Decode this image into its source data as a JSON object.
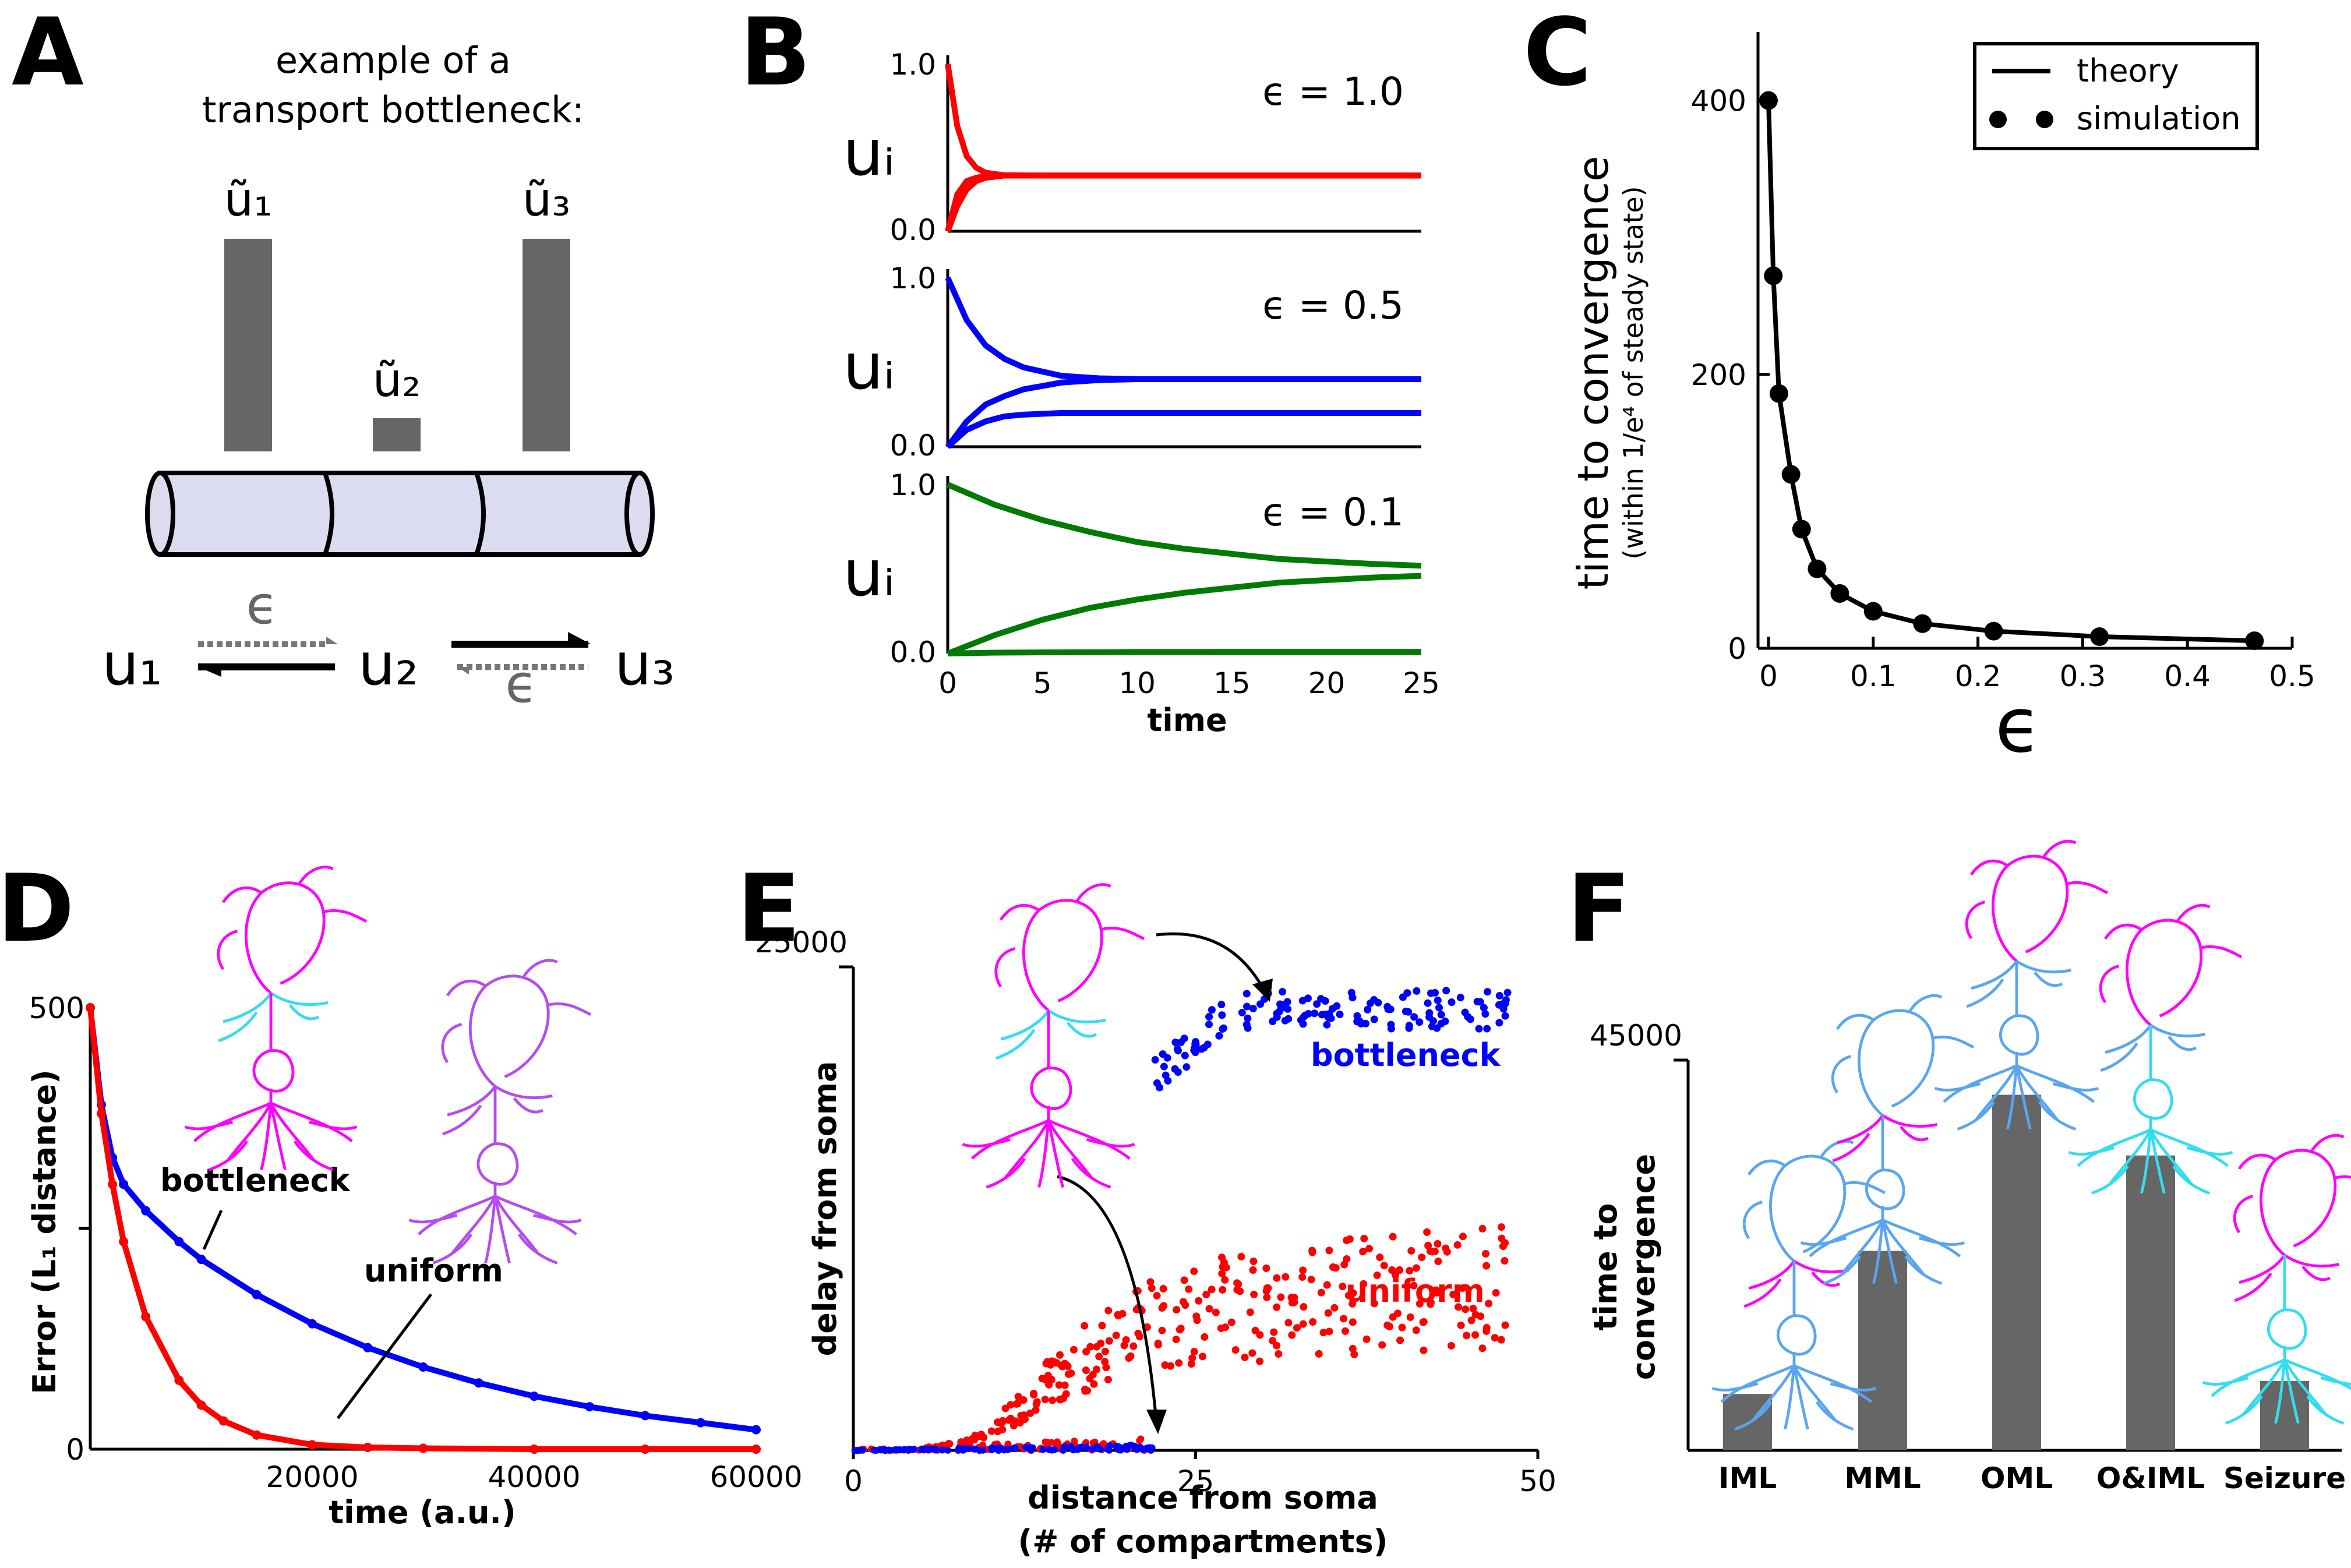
{
  "panels": {
    "A": {
      "letter": "A",
      "caption_line1": "example of a",
      "caption_line2": "transport bottleneck:",
      "bar_labels": [
        "ũ₁",
        "ũ₂",
        "ũ₃"
      ],
      "bar_heights": [
        1.0,
        0.16,
        1.0
      ],
      "nodes": [
        "u₁",
        "u₂",
        "u₃"
      ],
      "epsilon_label": "ϵ"
    },
    "B": {
      "letter": "B",
      "ylabel": "uᵢ",
      "xlabel": "time",
      "x_ticks": [
        "0",
        "5",
        "10",
        "15",
        "20",
        "25"
      ],
      "y_ticks": [
        "0.0",
        "1.0"
      ]
    },
    "C": {
      "letter": "C",
      "ylabel": "time to convergence",
      "ylabel_sub": "(within 1/e⁴ of steady state)",
      "xlabel": "ϵ",
      "legend": [
        "theory",
        "simulation"
      ],
      "x_ticks": [
        "0",
        "0.1",
        "0.2",
        "0.3",
        "0.4",
        "0.5"
      ],
      "y_ticks": [
        "0",
        "200",
        "400"
      ]
    },
    "D": {
      "letter": "D",
      "ylabel": "Error (L₁ distance)",
      "xlabel": "time (a.u.)",
      "x_ticks": [
        "20000",
        "40000",
        "60000"
      ],
      "y_ticks": [
        "0",
        "500"
      ],
      "labels": [
        "bottleneck",
        "uniform"
      ]
    },
    "E": {
      "letter": "E",
      "ylabel": "delay from soma",
      "xlabel_line1": "distance from soma",
      "xlabel_line2": "(# of compartments)",
      "x_ticks": [
        "0",
        "25",
        "50"
      ],
      "y_ticks": [
        "25000"
      ],
      "labels": [
        "bottleneck",
        "uniform"
      ]
    },
    "F": {
      "letter": "F",
      "ylabel_line1": "time to",
      "ylabel_line2": "convergence",
      "y_ticks": [
        "45000"
      ]
    }
  },
  "colors": {
    "red": "#ff0000",
    "blue": "#0000ff",
    "green": "#007a00",
    "magenta": "#ff00ff",
    "cyan": "#33ddee",
    "purple": "#b44cf0",
    "lightblue": "#5aa5f0",
    "bar_gray": "#666666",
    "tube": "#dcdcf0"
  },
  "chart_data": [
    {
      "panel": "B",
      "type": "line",
      "xlabel": "time",
      "ylabel": "uᵢ",
      "xlim": [
        0,
        25
      ],
      "subplots": [
        {
          "epsilon_label": "ϵ = 1.0",
          "epsilon": 1.0,
          "ylim": [
            0,
            1
          ],
          "series": [
            {
              "x": [
                0,
                0.5,
                1,
                1.5,
                2,
                3,
                5,
                10,
                25
              ],
              "values": [
                1.0,
                0.63,
                0.45,
                0.38,
                0.35,
                0.335,
                0.333,
                0.333,
                0.333
              ]
            },
            {
              "x": [
                0,
                0.5,
                1,
                1.5,
                2,
                3,
                5,
                10,
                25
              ],
              "values": [
                0.0,
                0.22,
                0.3,
                0.32,
                0.33,
                0.333,
                0.333,
                0.333,
                0.333
              ]
            },
            {
              "x": [
                0,
                0.5,
                1,
                1.5,
                2,
                3,
                5,
                10,
                25
              ],
              "values": [
                0.0,
                0.15,
                0.25,
                0.3,
                0.32,
                0.333,
                0.333,
                0.333,
                0.333
              ]
            }
          ]
        },
        {
          "epsilon_label": "ϵ = 0.5",
          "epsilon": 0.5,
          "ylim": [
            0,
            1
          ],
          "series": [
            {
              "x": [
                0,
                1,
                2,
                3,
                4,
                6,
                8,
                10,
                15,
                25
              ],
              "values": [
                1.0,
                0.75,
                0.6,
                0.52,
                0.47,
                0.42,
                0.405,
                0.4,
                0.4,
                0.4
              ]
            },
            {
              "x": [
                0,
                1,
                2,
                3,
                4,
                6,
                8,
                10,
                15,
                25
              ],
              "values": [
                0.0,
                0.1,
                0.15,
                0.18,
                0.19,
                0.2,
                0.2,
                0.2,
                0.2,
                0.2
              ]
            },
            {
              "x": [
                0,
                1,
                2,
                3,
                4,
                6,
                8,
                10,
                15,
                25
              ],
              "values": [
                0.0,
                0.15,
                0.25,
                0.3,
                0.34,
                0.38,
                0.395,
                0.4,
                0.4,
                0.4
              ]
            }
          ]
        },
        {
          "epsilon_label": "ϵ = 0.1",
          "epsilon": 0.1,
          "ylim": [
            0,
            1
          ],
          "series": [
            {
              "x": [
                0,
                2.5,
                5,
                7.5,
                10,
                12.5,
                15,
                17.5,
                20,
                22.5,
                25
              ],
              "values": [
                1.0,
                0.88,
                0.79,
                0.72,
                0.66,
                0.62,
                0.59,
                0.56,
                0.545,
                0.53,
                0.52
              ]
            },
            {
              "x": [
                0,
                2.5,
                5,
                7.5,
                10,
                12.5,
                15,
                17.5,
                20,
                22.5,
                25
              ],
              "values": [
                0.0,
                0.11,
                0.2,
                0.27,
                0.32,
                0.36,
                0.39,
                0.42,
                0.435,
                0.45,
                0.46
              ]
            },
            {
              "x": [
                0,
                2.5,
                5,
                7.5,
                10,
                12.5,
                15,
                17.5,
                20,
                22.5,
                25
              ],
              "values": [
                0.0,
                0.005,
                0.007,
                0.008,
                0.009,
                0.009,
                0.01,
                0.01,
                0.01,
                0.01,
                0.01
              ]
            }
          ]
        }
      ]
    },
    {
      "panel": "C",
      "type": "line",
      "xlabel": "ϵ",
      "ylabel": "time to convergence",
      "xlim": [
        -0.01,
        0.5
      ],
      "ylim": [
        0,
        450
      ],
      "series": [
        {
          "name": "theory",
          "x": [
            0.0,
            0.0046,
            0.01,
            0.0215,
            0.0316,
            0.0464,
            0.0681,
            0.1,
            0.147,
            0.215,
            0.316,
            0.464
          ],
          "values": [
            400,
            272,
            186,
            127,
            87,
            58,
            40,
            27,
            18,
            12.5,
            8.5,
            5.5
          ]
        },
        {
          "name": "simulation",
          "x": [
            0.0,
            0.0046,
            0.01,
            0.0215,
            0.0316,
            0.0464,
            0.0681,
            0.1,
            0.147,
            0.215,
            0.316,
            0.464
          ],
          "values": [
            400,
            272,
            186,
            127,
            87,
            58,
            40,
            27,
            18,
            12.5,
            8.5,
            5.5
          ]
        }
      ]
    },
    {
      "panel": "D",
      "type": "line",
      "xlabel": "time (a.u.)",
      "ylabel": "Error (L₁ distance)",
      "xlim": [
        0,
        60000
      ],
      "ylim": [
        0,
        500
      ],
      "series": [
        {
          "name": "bottleneck",
          "x": [
            0,
            1000,
            2000,
            3000,
            5000,
            8000,
            10000,
            15000,
            20000,
            25000,
            30000,
            35000,
            40000,
            45000,
            50000,
            55000,
            60000
          ],
          "values": [
            500,
            390,
            330,
            300,
            270,
            235,
            215,
            175,
            142,
            115,
            93,
            75,
            60,
            48,
            38,
            30,
            22
          ]
        },
        {
          "name": "uniform",
          "x": [
            0,
            1000,
            2000,
            3000,
            5000,
            8000,
            10000,
            12000,
            15000,
            20000,
            25000,
            30000,
            40000,
            50000,
            60000
          ],
          "values": [
            500,
            380,
            300,
            235,
            150,
            78,
            50,
            32,
            16,
            5,
            2,
            1,
            0,
            0,
            0
          ]
        }
      ]
    },
    {
      "panel": "E",
      "type": "scatter",
      "xlabel": "distance from soma (# of compartments)",
      "ylabel": "delay from soma",
      "xlim": [
        0,
        50
      ],
      "ylim": [
        0,
        25000
      ],
      "series": [
        {
          "name": "bottleneck",
          "x": [
            0,
            5,
            10,
            15,
            20,
            22,
            21,
            23,
            25,
            27,
            29,
            31,
            33,
            35,
            37,
            39,
            41,
            43,
            45,
            47,
            48
          ],
          "values": [
            50,
            80,
            120,
            200,
            350,
            600,
            20000,
            18500,
            21000,
            22500,
            23000,
            23300,
            23200,
            23500,
            23300,
            23400,
            23600,
            23200,
            23100,
            23000,
            23200
          ]
        },
        {
          "name": "uniform",
          "x": [
            5,
            8,
            10,
            12,
            14,
            15,
            16,
            18,
            20,
            22,
            24,
            26,
            28,
            30,
            32,
            34,
            36,
            38,
            40,
            42,
            44,
            46,
            48
          ],
          "values": [
            100,
            500,
            1200,
            3000,
            4500,
            5000,
            6500,
            7000,
            8000,
            9000,
            9500,
            10000,
            10000,
            10200,
            10500,
            10800,
            11000,
            11000,
            11200,
            11300,
            11400,
            11500,
            11600
          ]
        }
      ]
    },
    {
      "panel": "F",
      "type": "bar",
      "ylabel": "time to convergence",
      "ylim": [
        0,
        45000
      ],
      "categories": [
        "IML",
        "MML",
        "OML",
        "O&IML",
        "Seizure"
      ],
      "values": [
        6500,
        23000,
        41000,
        34000,
        8000
      ]
    }
  ]
}
